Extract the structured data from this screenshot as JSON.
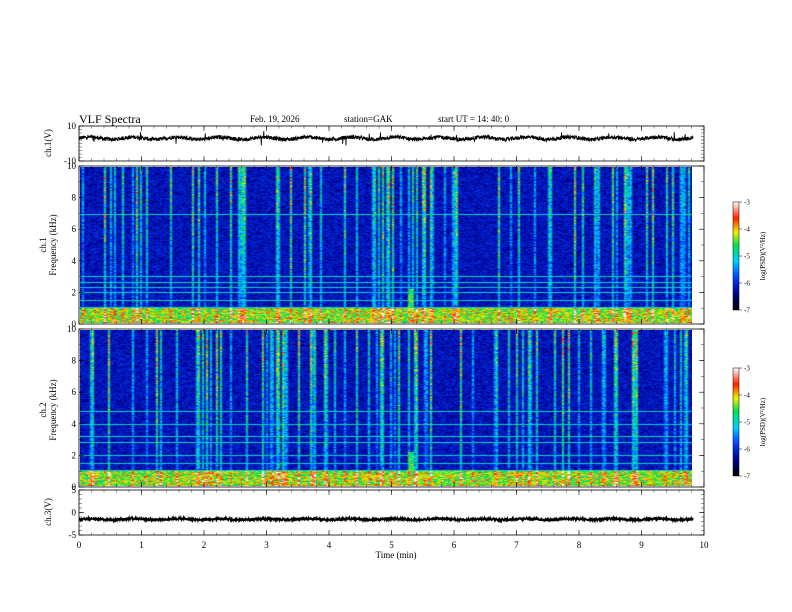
{
  "header": {
    "title": "VLF  Spectra",
    "date": "Feb. 19, 2026",
    "station": "station=GAK",
    "start": "start  UT  =    14: 40: 0"
  },
  "chart_data": {
    "type": "heatmap",
    "title": "VLF  Spectra",
    "xlabel": "Time  (min)",
    "xlim": [
      0,
      10
    ],
    "x_ticks": [
      "0",
      "1",
      "2",
      "3",
      "4",
      "5",
      "6",
      "7",
      "8",
      "9",
      "10"
    ],
    "panels": [
      {
        "id": "ch1-waveform",
        "type": "line",
        "ylabel": "ch.1(V)",
        "ylim": [
          -10,
          10
        ],
        "y_ticks": [
          "10",
          "-10"
        ],
        "baseline": 3,
        "time_end": 9.83
      },
      {
        "id": "ch1-spectrogram",
        "type": "heatmap",
        "ylabel_top": "ch.1",
        "ylabel": "Frequency  (kHz)",
        "ylim": [
          0,
          10
        ],
        "y_ticks": [
          "0",
          "2",
          "4",
          "6",
          "8",
          "10"
        ],
        "colorbar": {
          "label": "log(PSD)(V²/Hz)",
          "range": [
            -7,
            -3
          ],
          "ticks": [
            "-3",
            "-4",
            "-5",
            "-6",
            "-7"
          ]
        },
        "notable_lines_khz": [
          0.2,
          0.4,
          0.6,
          0.8,
          1.0,
          1.5,
          2.0,
          2.3,
          2.6,
          3.0,
          7.0
        ],
        "burst_time_min": 5.3
      },
      {
        "id": "ch2-spectrogram",
        "type": "heatmap",
        "ylabel_top": "ch.2",
        "ylabel": "Frequency  (kHz)",
        "ylim": [
          0,
          10
        ],
        "y_ticks": [
          "0",
          "2",
          "4",
          "6",
          "8",
          "10"
        ],
        "colorbar": {
          "label": "log(PSD)(V²/Hz)",
          "range": [
            -7,
            -3
          ],
          "ticks": [
            "-3",
            "-4",
            "-5",
            "-6",
            "-7"
          ]
        },
        "notable_lines_khz": [
          0.3,
          0.5,
          1.0,
          1.5,
          2.0,
          2.8,
          3.2,
          4.0,
          4.8
        ],
        "burst_time_min": 5.3
      },
      {
        "id": "ch3-waveform",
        "type": "line",
        "ylabel": "ch.3(V)",
        "ylim": [
          -5,
          5
        ],
        "y_ticks": [
          "5",
          "0",
          "-5"
        ],
        "baseline": -1.5,
        "time_end": 9.83
      }
    ]
  }
}
